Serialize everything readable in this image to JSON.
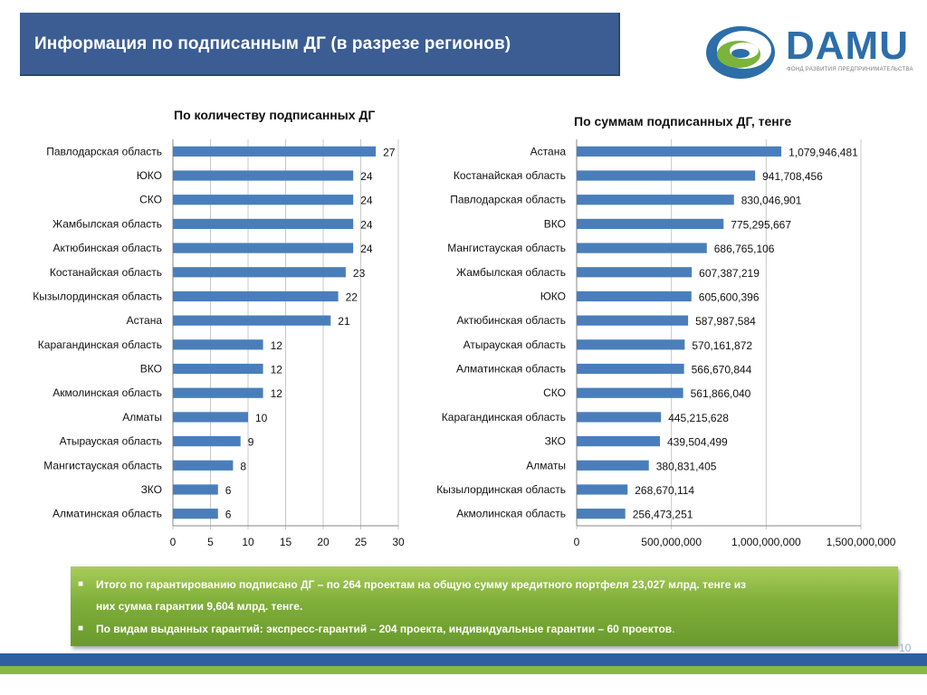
{
  "header": {
    "title": "Информация по подписанным ДГ (в разрезе регионов)"
  },
  "logo": {
    "word": "DAMU",
    "subtitle": "ФОНД РАЗВИТИЯ ПРЕДПРИНИМАТЕЛЬСТВА",
    "colors": {
      "blue": "#2d6ea8",
      "green": "#7ab43c"
    }
  },
  "colors": {
    "bar": "#4a7ebb",
    "title_bg": "#3b5d93",
    "summary_bg": "#7fae39"
  },
  "chart_data": [
    {
      "type": "bar",
      "orientation": "horizontal",
      "title": "По количеству подписанных ДГ",
      "categories": [
        "Павлодарская область",
        "ЮКО",
        "СКО",
        "Жамбылская область",
        "Актюбинская область",
        "Костанайская область",
        "Кызылординская область",
        "Астана",
        "Карагандинская область",
        "ВКО",
        "Акмолинская область",
        "Алматы",
        "Атырауская область",
        "Мангистауская область",
        "ЗКО",
        "Алматинская область"
      ],
      "values": [
        27,
        24,
        24,
        24,
        24,
        23,
        22,
        21,
        12,
        12,
        12,
        10,
        9,
        8,
        6,
        6
      ],
      "value_labels": [
        "27",
        "24",
        "24",
        "24",
        "24",
        "23",
        "22",
        "21",
        "12",
        "12",
        "12",
        "10",
        "9",
        "8",
        "6",
        "6"
      ],
      "xlim": [
        0,
        30
      ],
      "xticks": [
        "0",
        "5",
        "10",
        "15",
        "20",
        "25",
        "30"
      ],
      "grid": true
    },
    {
      "type": "bar",
      "orientation": "horizontal",
      "title": "По суммам подписанных ДГ,  тенге",
      "categories": [
        "Астана",
        "Костанайская область",
        "Павлодарская область",
        "ВКО",
        "Мангистауская область",
        "Жамбылская область",
        "ЮКО",
        "Актюбинская область",
        "Атырауская область",
        "Алматинская область",
        "СКО",
        "Карагандинская область",
        "ЗКО",
        "Алматы",
        "Кызылординская область",
        "Акмолинская область"
      ],
      "values": [
        1079946481,
        941708456,
        830046901,
        775295667,
        686765106,
        607387219,
        605600396,
        587987584,
        570161872,
        566670844,
        561866040,
        445215628,
        439504499,
        380831405,
        268670114,
        256473251
      ],
      "value_labels": [
        "1,079,946,481",
        "941,708,456",
        "830,046,901",
        "775,295,667",
        "686,765,106",
        "607,387,219",
        "605,600,396",
        "587,987,584",
        "570,161,872",
        "566,670,844",
        "561,866,040",
        "445,215,628",
        "439,504,499",
        "380,831,405",
        "268,670,114",
        "256,473,251"
      ],
      "xlim": [
        0,
        1500000000
      ],
      "xticks": [
        "0",
        "500,000,000",
        "1,000,000,000",
        "1,500,000,000"
      ],
      "grid": true
    }
  ],
  "summary": {
    "line1": "Итого по гарантированию подписано ДГ – по 264 проектам на общую сумму кредитного портфеля 23,027 млрд. тенге из",
    "line1b": "них сумма гарантии 9,604 млрд. тенге.",
    "line2": "По видам выданных гарантий: экспресс-гарантий – 204 проекта, индивидуальные гарантии – 60 проектов",
    "line2_end": ".",
    "bullet": "■"
  },
  "page_number": "10"
}
